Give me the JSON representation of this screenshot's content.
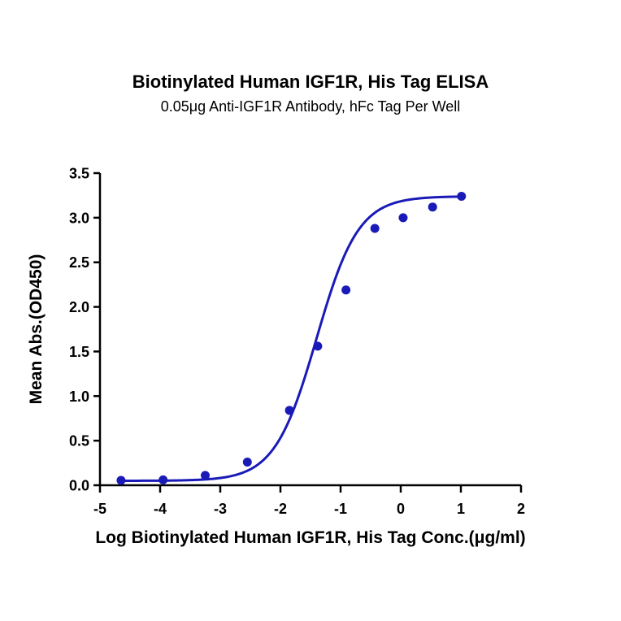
{
  "chart_data": {
    "type": "scatter",
    "title": "Biotinylated Human IGF1R, His Tag ELISA",
    "subtitle": "0.05μg Anti-IGF1R Antibody, hFc Tag Per Well",
    "xlabel": "Log Biotinylated Human IGF1R, His Tag Conc.(μg/ml)",
    "ylabel": "Mean Abs.(OD450)",
    "xlim": [
      -5,
      2
    ],
    "ylim": [
      0,
      3.5
    ],
    "xticks": [
      "-5",
      "-4",
      "-3",
      "-2",
      "-1",
      "0",
      "1",
      "2"
    ],
    "yticks": [
      "0.0",
      "0.5",
      "1.0",
      "1.5",
      "2.0",
      "2.5",
      "3.0",
      "3.5"
    ],
    "grid": false,
    "legend": null,
    "series": [
      {
        "name": "Mean Abs.(OD450)",
        "color": "#1a1ab8",
        "fit": "4PL sigmoidal curve",
        "x": [
          -4.65,
          -3.95,
          -3.25,
          -2.55,
          -1.85,
          -1.38,
          -0.91,
          -0.43,
          0.04,
          0.53,
          1.01
        ],
        "y": [
          0.055,
          0.06,
          0.11,
          0.26,
          0.84,
          1.56,
          2.19,
          2.88,
          3.0,
          3.12,
          3.24
        ]
      }
    ],
    "fit_params": {
      "bottom": 0.05,
      "top": 3.24,
      "logEC50": -1.4,
      "hill": 1.25
    }
  }
}
